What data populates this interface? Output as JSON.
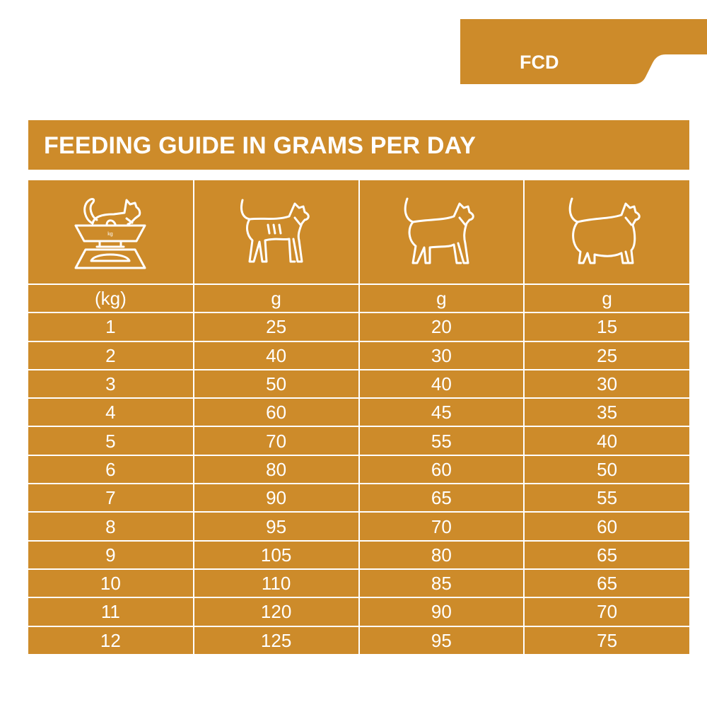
{
  "tab": {
    "label": "FCD"
  },
  "title": "FEEDING GUIDE IN GRAMS PER DAY",
  "colors": {
    "accent": "#cd8b2a",
    "text": "#ffffff"
  },
  "header_icons": [
    "cat-on-scale-icon",
    "thin-cat-icon",
    "ideal-cat-icon",
    "overweight-cat-icon"
  ],
  "scale_label": "kg",
  "units": [
    "(kg)",
    "g",
    "g",
    "g"
  ],
  "rows": [
    [
      "1",
      "25",
      "20",
      "15"
    ],
    [
      "2",
      "40",
      "30",
      "25"
    ],
    [
      "3",
      "50",
      "40",
      "30"
    ],
    [
      "4",
      "60",
      "45",
      "35"
    ],
    [
      "5",
      "70",
      "55",
      "40"
    ],
    [
      "6",
      "80",
      "60",
      "50"
    ],
    [
      "7",
      "90",
      "65",
      "55"
    ],
    [
      "8",
      "95",
      "70",
      "60"
    ],
    [
      "9",
      "105",
      "80",
      "65"
    ],
    [
      "10",
      "110",
      "85",
      "65"
    ],
    [
      "11",
      "120",
      "90",
      "70"
    ],
    [
      "12",
      "125",
      "95",
      "75"
    ]
  ]
}
